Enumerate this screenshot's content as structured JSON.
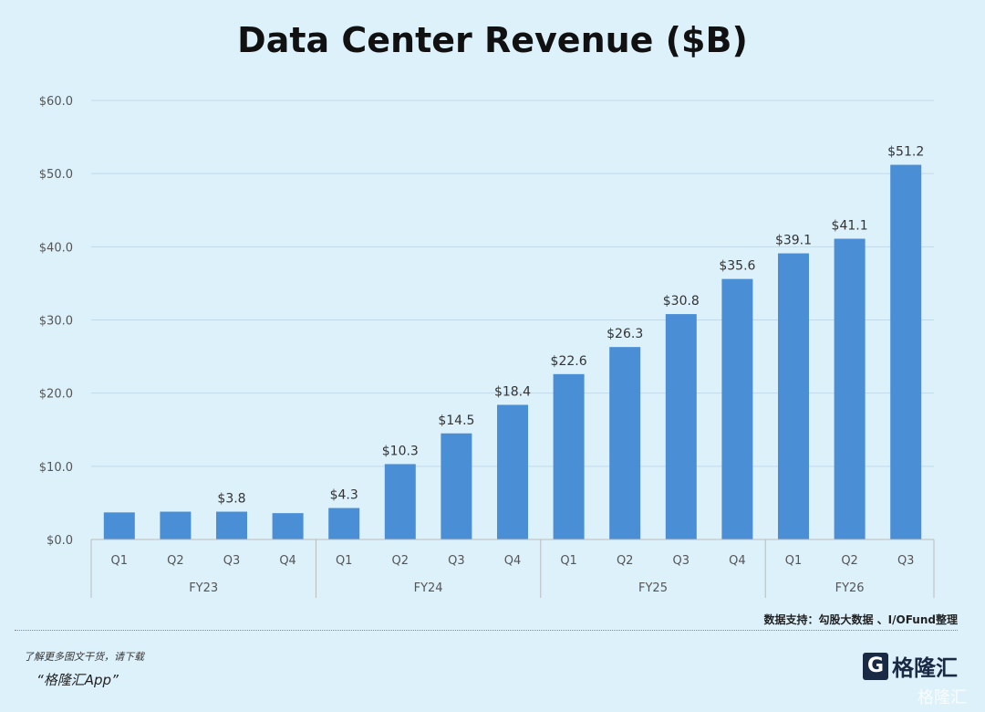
{
  "chart_data": {
    "type": "bar",
    "title": "Data Center Revenue ($B)",
    "groups": [
      {
        "label": "FY23",
        "quarters": [
          "Q1",
          "Q2",
          "Q3",
          "Q4"
        ]
      },
      {
        "label": "FY24",
        "quarters": [
          "Q1",
          "Q2",
          "Q3",
          "Q4"
        ]
      },
      {
        "label": "FY25",
        "quarters": [
          "Q1",
          "Q2",
          "Q3",
          "Q4"
        ]
      },
      {
        "label": "FY26",
        "quarters": [
          "Q1",
          "Q2",
          "Q3"
        ]
      }
    ],
    "values": [
      3.7,
      3.8,
      3.8,
      3.6,
      4.3,
      10.3,
      14.5,
      18.4,
      22.6,
      26.3,
      30.8,
      35.6,
      39.1,
      41.1,
      51.2
    ],
    "data_labels": [
      "",
      "",
      "$3.8",
      "",
      "$4.3",
      "$10.3",
      "$14.5",
      "$18.4",
      "$22.6",
      "$26.3",
      "$30.8",
      "$35.6",
      "$39.1",
      "$41.1",
      "$51.2"
    ],
    "yticks": [
      "$0.0",
      "$10.0",
      "$20.0",
      "$30.0",
      "$40.0",
      "$50.0",
      "$60.0"
    ],
    "ylim": [
      0,
      60
    ],
    "grid": true,
    "bar_color": "#4a8fd6"
  },
  "footer": {
    "source": "数据支持：勾股大数据 、I/OFund整理",
    "promo_line1": "了解更多图文干货，请下载",
    "promo_line2": "“格隆汇App”",
    "logo_text": "格隆汇",
    "watermark": "格隆汇"
  }
}
